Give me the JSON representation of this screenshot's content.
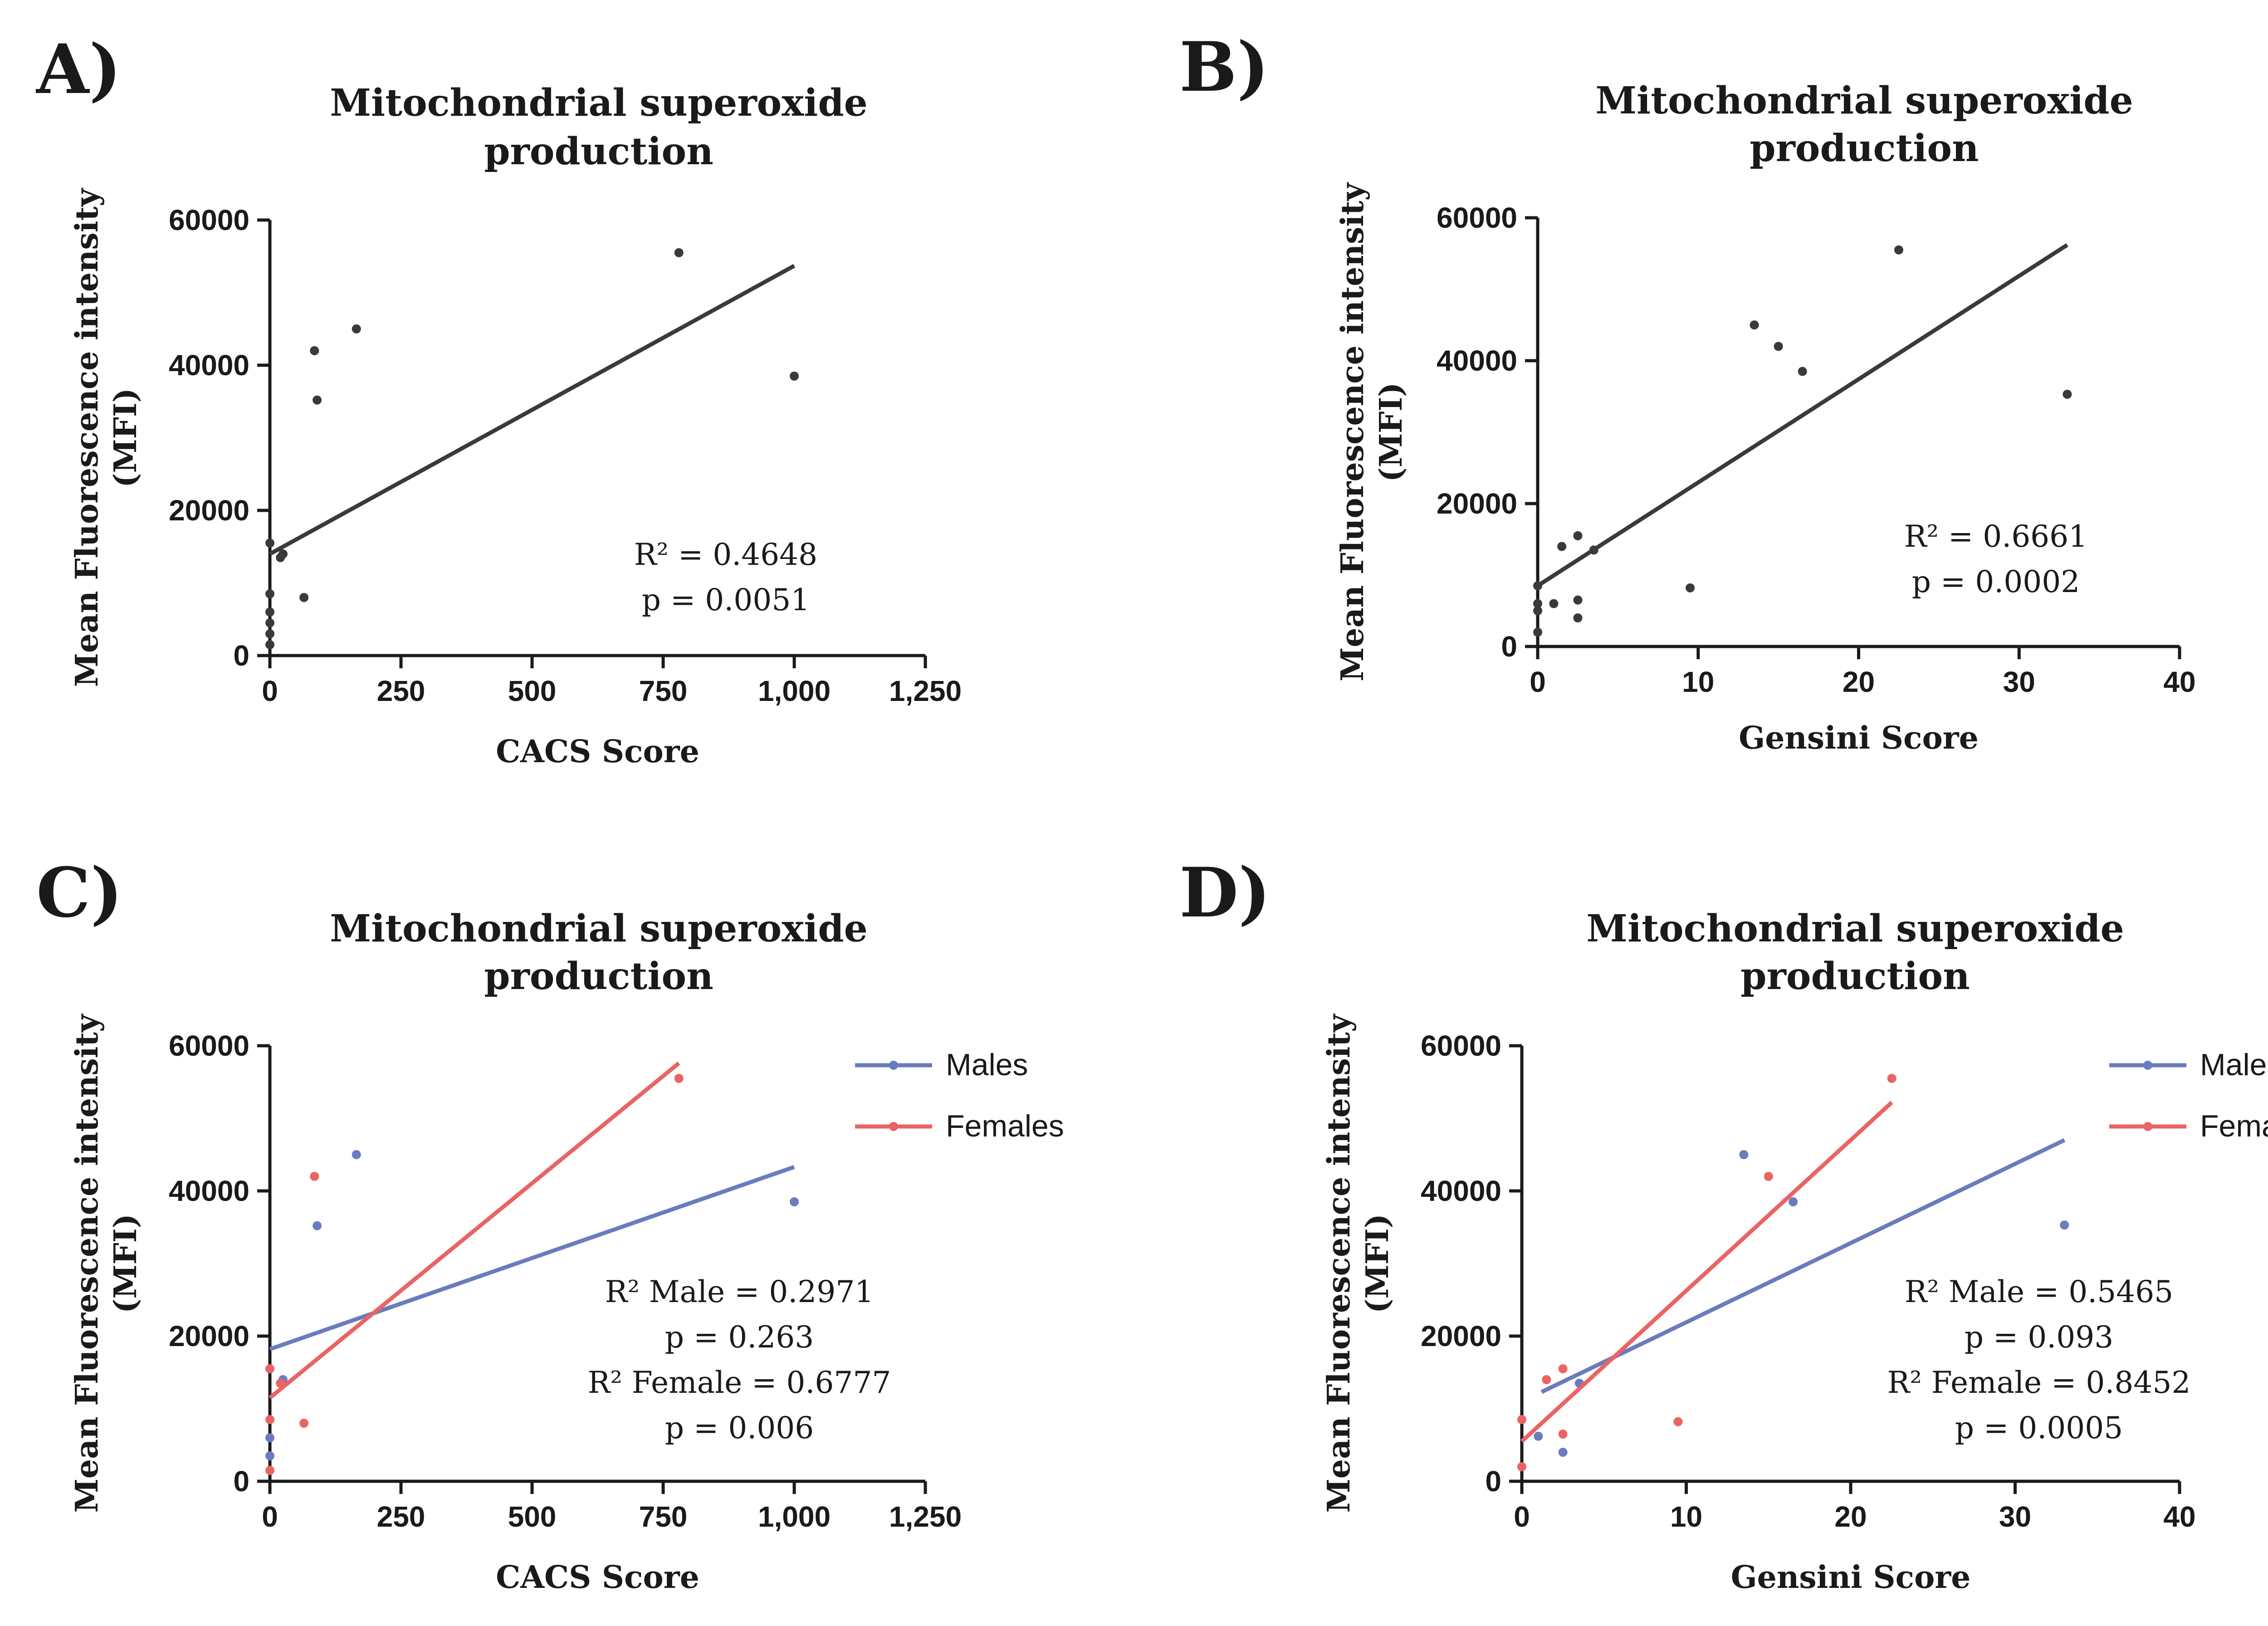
{
  "chart_data": [
    {
      "panel": "A)",
      "type": "scatter",
      "title": "Mitochondrial superoxide production",
      "title_lines": [
        "Mitochondrial superoxide",
        "production"
      ],
      "xlabel": "CACS Score",
      "ylabel_lines": [
        "Mean Fluorescence intensity",
        "(MFI)"
      ],
      "xlim": [
        0,
        1250
      ],
      "ylim": [
        0,
        60000
      ],
      "xticks": [
        0,
        250,
        500,
        750,
        1000,
        1250
      ],
      "xtick_labels": [
        "0",
        "250",
        "500",
        "750",
        "1,000",
        "1,250"
      ],
      "yticks": [
        0,
        20000,
        40000,
        60000
      ],
      "ytick_labels": [
        "0",
        "20000",
        "40000",
        "60000"
      ],
      "series": [
        {
          "color": "#3a3a3a",
          "points": [
            [
              0,
              1500
            ],
            [
              0,
              3000
            ],
            [
              0,
              4500
            ],
            [
              0,
              6000
            ],
            [
              0,
              8500
            ],
            [
              0,
              15500
            ],
            [
              20,
              13500
            ],
            [
              25,
              14000
            ],
            [
              65,
              8000
            ],
            [
              85,
              42000
            ],
            [
              90,
              35200
            ],
            [
              165,
              45000
            ],
            [
              780,
              55500
            ],
            [
              1000,
              38500
            ]
          ],
          "fit": [
            [
              0,
              14000
            ],
            [
              1000,
              53700
            ]
          ]
        }
      ],
      "annotations": [
        "R² = 0.4648",
        "p = 0.0051"
      ]
    },
    {
      "panel": "B)",
      "type": "scatter",
      "title": "Mitochondrial superoxide production",
      "title_lines": [
        "Mitochondrial superoxide",
        "production"
      ],
      "xlabel": "Gensini Score",
      "ylabel_lines": [
        "Mean Fluorescence intensity",
        "(MFI)"
      ],
      "xlim": [
        0,
        40
      ],
      "ylim": [
        0,
        60000
      ],
      "xticks": [
        0,
        10,
        20,
        30,
        40
      ],
      "xtick_labels": [
        "0",
        "10",
        "20",
        "30",
        "40"
      ],
      "yticks": [
        0,
        20000,
        40000,
        60000
      ],
      "ytick_labels": [
        "0",
        "20000",
        "40000",
        "60000"
      ],
      "series": [
        {
          "color": "#3a3a3a",
          "points": [
            [
              0,
              2000
            ],
            [
              0,
              5000
            ],
            [
              0,
              6000
            ],
            [
              0,
              8500
            ],
            [
              1,
              6000
            ],
            [
              1.5,
              14000
            ],
            [
              2.5,
              15500
            ],
            [
              2.5,
              6500
            ],
            [
              2.5,
              4000
            ],
            [
              3.5,
              13500
            ],
            [
              9.5,
              8200
            ],
            [
              13.5,
              45000
            ],
            [
              15,
              42000
            ],
            [
              16.5,
              38500
            ],
            [
              22.5,
              55500
            ],
            [
              33,
              35300
            ]
          ],
          "fit": [
            [
              0,
              8500
            ],
            [
              33,
              56200
            ]
          ]
        }
      ],
      "annotations": [
        "R² = 0.6661",
        "p = 0.0002"
      ]
    },
    {
      "panel": "C)",
      "type": "scatter",
      "title": "Mitochondrial superoxide production",
      "title_lines": [
        "Mitochondrial superoxide",
        "production"
      ],
      "xlabel": "CACS Score",
      "ylabel_lines": [
        "Mean Fluorescence intensity",
        "(MFI)"
      ],
      "xlim": [
        0,
        1250
      ],
      "ylim": [
        0,
        60000
      ],
      "xticks": [
        0,
        250,
        500,
        750,
        1000,
        1250
      ],
      "xtick_labels": [
        "0",
        "250",
        "500",
        "750",
        "1,000",
        "1,250"
      ],
      "yticks": [
        0,
        20000,
        40000,
        60000
      ],
      "ytick_labels": [
        "0",
        "20000",
        "40000",
        "60000"
      ],
      "legend_position": "top-right",
      "series": [
        {
          "name": "Males",
          "color": "#6a7cbd",
          "points": [
            [
              0,
              3500
            ],
            [
              0,
              6000
            ],
            [
              25,
              14000
            ],
            [
              90,
              35200
            ],
            [
              165,
              45000
            ],
            [
              1000,
              38500
            ]
          ],
          "fit": [
            [
              0,
              18200
            ],
            [
              1000,
              43300
            ]
          ]
        },
        {
          "name": "Females",
          "color": "#ea6464",
          "points": [
            [
              0,
              1500
            ],
            [
              0,
              8500
            ],
            [
              0,
              15500
            ],
            [
              20,
              13500
            ],
            [
              65,
              8000
            ],
            [
              85,
              42000
            ],
            [
              780,
              55500
            ]
          ],
          "fit": [
            [
              0,
              11500
            ],
            [
              780,
              57600
            ]
          ]
        }
      ],
      "annotations": [
        "R² Male = 0.2971",
        "p = 0.263",
        "R² Female = 0.6777",
        "p = 0.006"
      ]
    },
    {
      "panel": "D)",
      "type": "scatter",
      "title": "Mitochondrial superoxide production",
      "title_lines": [
        "Mitochondrial superoxide",
        "production"
      ],
      "xlabel": "Gensini Score",
      "ylabel_lines": [
        "Mean Fluorescence intensity",
        "(MFI)"
      ],
      "xlim": [
        0,
        40
      ],
      "ylim": [
        0,
        60000
      ],
      "xticks": [
        0,
        10,
        20,
        30,
        40
      ],
      "xtick_labels": [
        "0",
        "10",
        "20",
        "30",
        "40"
      ],
      "yticks": [
        0,
        20000,
        40000,
        60000
      ],
      "ytick_labels": [
        "0",
        "20000",
        "40000",
        "60000"
      ],
      "legend_position": "top-right",
      "series": [
        {
          "name": "Males",
          "color": "#6a7cbd",
          "points": [
            [
              1,
              6200
            ],
            [
              2.5,
              4000
            ],
            [
              3.5,
              13500
            ],
            [
              13.5,
              45000
            ],
            [
              16.5,
              38500
            ],
            [
              33,
              35300
            ]
          ],
          "fit": [
            [
              1.2,
              12300
            ],
            [
              33,
              47000
            ]
          ]
        },
        {
          "name": "Females",
          "color": "#ea6464",
          "points": [
            [
              0,
              2000
            ],
            [
              0,
              8500
            ],
            [
              1.5,
              14000
            ],
            [
              2.5,
              15500
            ],
            [
              2.5,
              6500
            ],
            [
              9.5,
              8200
            ],
            [
              15,
              42000
            ],
            [
              22.5,
              55500
            ]
          ],
          "fit": [
            [
              0,
              5500
            ],
            [
              22.5,
              52200
            ]
          ]
        }
      ],
      "annotations": [
        "R² Male = 0.5465",
        "p = 0.093",
        "R² Female = 0.8452",
        "p = 0.0005"
      ]
    }
  ]
}
